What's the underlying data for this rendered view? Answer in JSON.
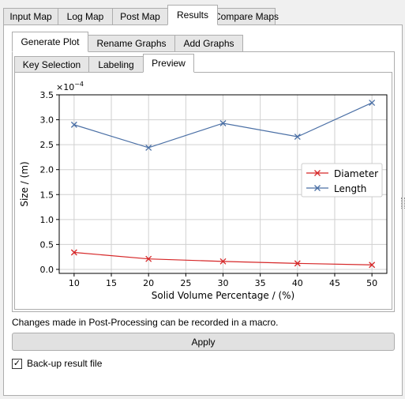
{
  "top_tabs": [
    {
      "label": "Input Map",
      "active": false
    },
    {
      "label": "Log Map",
      "active": false
    },
    {
      "label": "Post Map",
      "active": false
    },
    {
      "label": "Results",
      "active": true
    },
    {
      "label": "Compare Maps",
      "active": false
    }
  ],
  "plot_tabs": [
    {
      "label": "Generate Plot",
      "active": true
    },
    {
      "label": "Rename Graphs",
      "active": false
    },
    {
      "label": "Add Graphs",
      "active": false
    }
  ],
  "sub_tabs": [
    {
      "label": "Key Selection",
      "active": false
    },
    {
      "label": "Labeling",
      "active": false
    },
    {
      "label": "Preview",
      "active": true
    }
  ],
  "chart_data": {
    "type": "line",
    "xlabel": "Solid Volume Percentage / (%)",
    "ylabel": "Size / (m)",
    "y_multiplier": "×10",
    "y_exponent": "−4",
    "xlim": [
      8,
      52
    ],
    "ylim": [
      -0.08,
      3.5
    ],
    "x_ticks": [
      "10",
      "15",
      "20",
      "25",
      "30",
      "35",
      "40",
      "45",
      "50"
    ],
    "y_ticks": [
      "0.0",
      "0.5",
      "1.0",
      "1.5",
      "2.0",
      "2.5",
      "3.0",
      "3.5"
    ],
    "grid": true,
    "legend_position": "center-right",
    "x": [
      10,
      20,
      30,
      40,
      50
    ],
    "series": [
      {
        "name": "Diameter",
        "color": "#d62728",
        "values": [
          0.34,
          0.21,
          0.16,
          0.12,
          0.09
        ]
      },
      {
        "name": "Length",
        "color": "#4a6fa5",
        "values": [
          2.9,
          2.44,
          2.93,
          2.66,
          3.34
        ]
      }
    ]
  },
  "note_text": "Changes made in Post-Processing can be recorded in a macro.",
  "apply_label": "Apply",
  "backup": {
    "label": "Back-up result file",
    "checked": true
  }
}
